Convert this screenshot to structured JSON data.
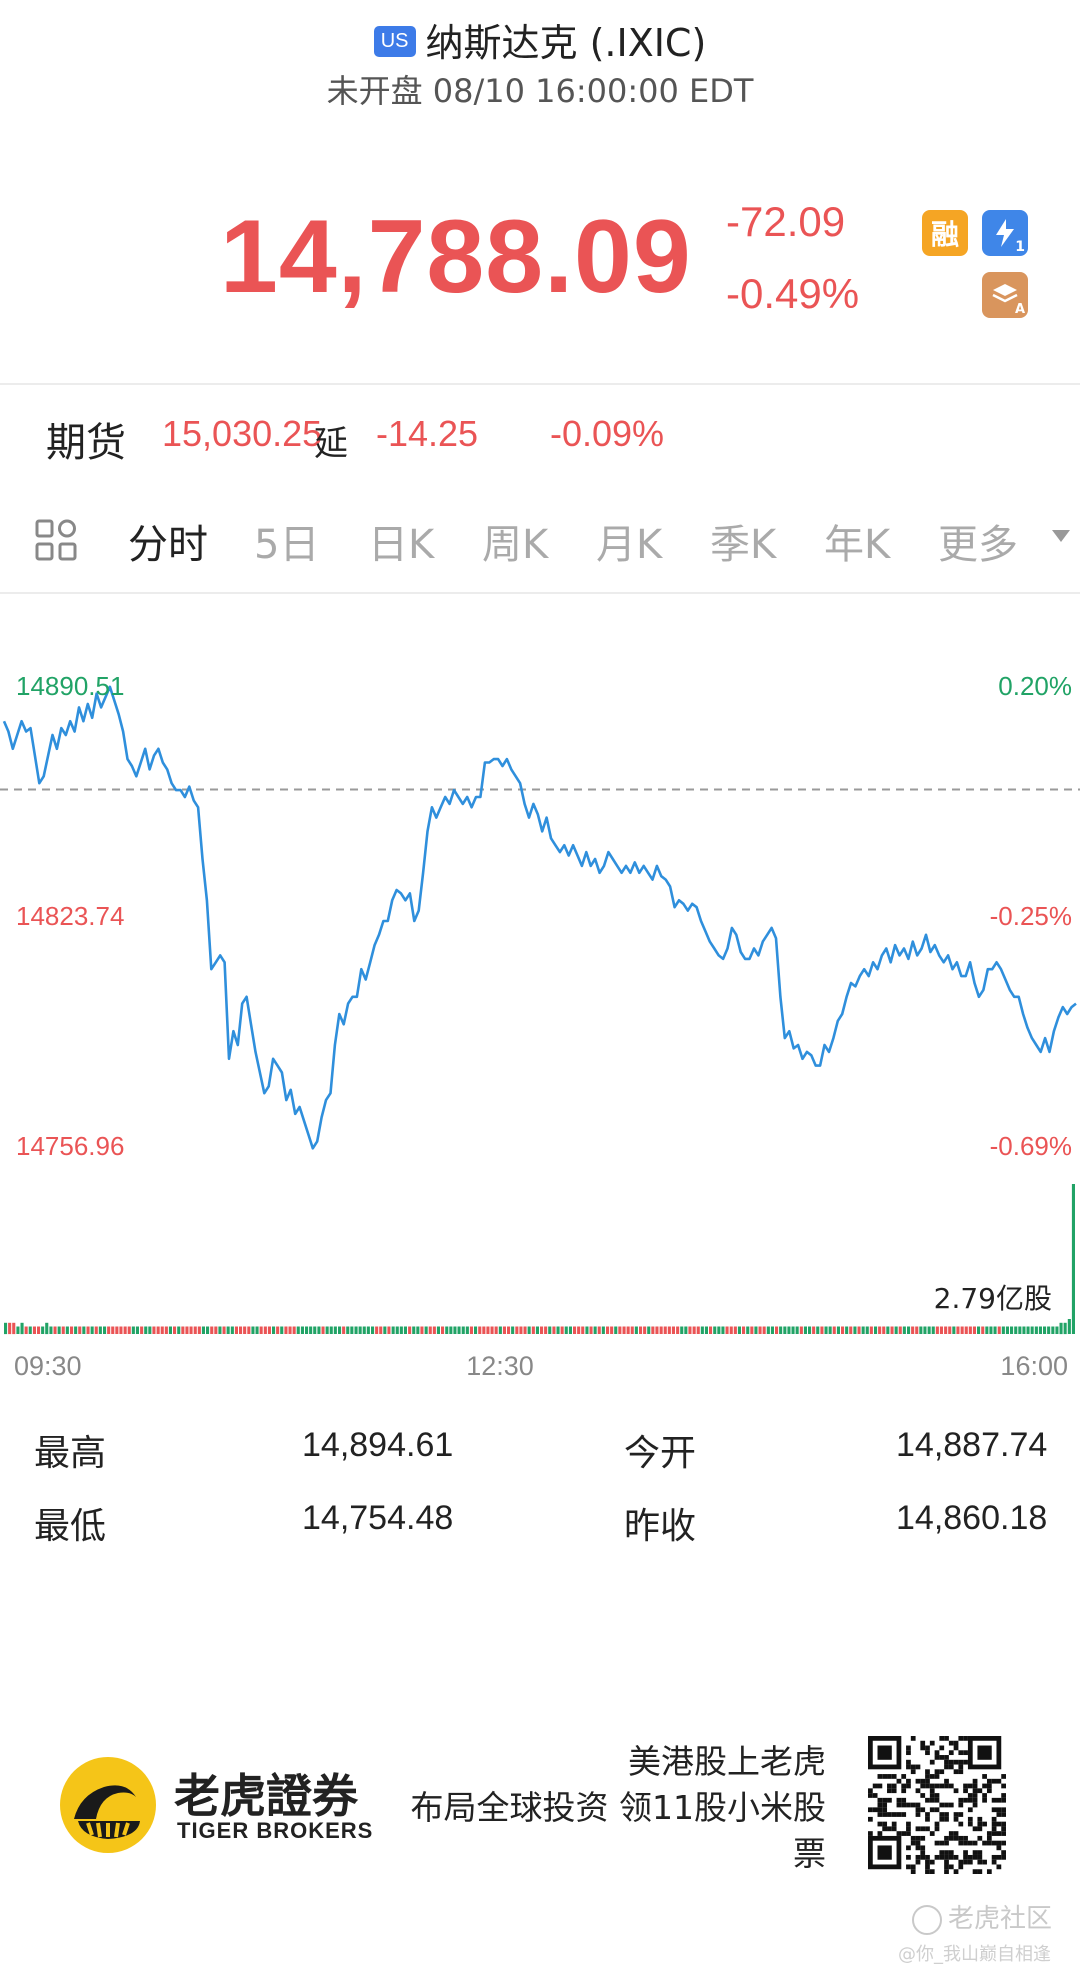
{
  "header": {
    "market_badge": "US",
    "title": "纳斯达克 (.IXIC)",
    "status": "未开盘 08/10 16:00:00 EDT"
  },
  "quote": {
    "price": "14,788.09",
    "change": "-72.09",
    "change_pct": "-0.49%",
    "badge_margin": "融",
    "badge_flash_sub": "1",
    "badge_layer_sub": "A"
  },
  "futures": {
    "label": "期货",
    "price": "15,030.25",
    "delay_tag": "延",
    "change": "-14.25",
    "change_pct": "-0.09%"
  },
  "tabs": {
    "active": "分时",
    "items": [
      "分时",
      "5日",
      "日K",
      "周K",
      "月K",
      "季K",
      "年K",
      "更多"
    ]
  },
  "chart_data": {
    "type": "line",
    "y_left_labels": [
      "14890.51",
      "14823.74",
      "14756.96"
    ],
    "y_right_labels": [
      "0.20%",
      "-0.25%",
      "-0.69%"
    ],
    "prev_close": 14860.18,
    "ylim": [
      14756.96,
      14890.51
    ],
    "x_labels": [
      "09:30",
      "12:30",
      "16:00"
    ],
    "volume_label": "2.79亿股",
    "colors": {
      "line": "#2f8fdc",
      "up": "#21a366",
      "down": "#ea5455",
      "ref": "#9a9a9a"
    },
    "series": [
      {
        "values": [
          14880,
          14877,
          14872,
          14876,
          14880,
          14877,
          14878,
          14870,
          14862,
          14864,
          14870,
          14876,
          14872,
          14878,
          14876,
          14880,
          14877,
          14884,
          14880,
          14885,
          14881,
          14888,
          14884,
          14887,
          14890,
          14886,
          14882,
          14877,
          14869,
          14867,
          14864,
          14868,
          14872,
          14866,
          14870,
          14872,
          14868,
          14866,
          14862,
          14860,
          14860,
          14858,
          14861,
          14857,
          14855,
          14840,
          14828,
          14808,
          14810,
          14812,
          14810,
          14782,
          14790,
          14786,
          14798,
          14800,
          14792,
          14784,
          14778,
          14772,
          14774,
          14782,
          14780,
          14778,
          14770,
          14773,
          14766,
          14768,
          14764,
          14760,
          14756,
          14758,
          14765,
          14770,
          14772,
          14786,
          14795,
          14792,
          14798,
          14800,
          14800,
          14808,
          14805,
          14810,
          14815,
          14818,
          14822,
          14822,
          14828,
          14831,
          14830,
          14828,
          14830,
          14822,
          14825,
          14836,
          14848,
          14855,
          14852,
          14855,
          14858,
          14856,
          14860,
          14858,
          14856,
          14858,
          14855,
          14858,
          14858,
          14868,
          14868,
          14869,
          14869,
          14867,
          14869,
          14866,
          14864,
          14862,
          14856,
          14852,
          14856,
          14853,
          14848,
          14852,
          14846,
          14844,
          14842,
          14844,
          14841,
          14844,
          14841,
          14838,
          14842,
          14838,
          14840,
          14836,
          14838,
          14842,
          14840,
          14838,
          14836,
          14838,
          14836,
          14839,
          14836,
          14838,
          14836,
          14834,
          14838,
          14835,
          14834,
          14832,
          14826,
          14828,
          14827,
          14825,
          14827,
          14826,
          14822,
          14819,
          14816,
          14814,
          14812,
          14811,
          14814,
          14820,
          14818,
          14813,
          14811,
          14811,
          14814,
          14812,
          14816,
          14818,
          14820,
          14817,
          14800,
          14788,
          14790,
          14785,
          14786,
          14782,
          14784,
          14783,
          14780,
          14780,
          14786,
          14784,
          14788,
          14793,
          14795,
          14800,
          14804,
          14803,
          14806,
          14808,
          14806,
          14810,
          14808,
          14812,
          14814,
          14810,
          14815,
          14812,
          14814,
          14811,
          14816,
          14812,
          14814,
          14818,
          14813,
          14815,
          14812,
          14810,
          14812,
          14808,
          14810,
          14806,
          14806,
          14810,
          14804,
          14800,
          14802,
          14808,
          14808,
          14810,
          14808,
          14805,
          14802,
          14800,
          14800,
          14795,
          14791,
          14788,
          14786,
          14784,
          14788,
          14784,
          14790,
          14794,
          14797,
          14795,
          14797,
          14798
        ]
      }
    ],
    "volume": [
      3,
      3,
      3,
      2,
      3,
      2,
      2,
      2,
      2,
      2,
      3,
      2,
      2,
      2,
      2,
      2,
      2,
      2,
      2,
      2,
      2,
      2,
      2,
      2,
      2,
      2,
      2,
      2,
      2,
      2,
      2,
      2,
      2,
      2,
      2,
      2,
      2,
      2,
      2,
      2,
      2,
      2,
      2,
      2,
      2,
      2,
      2,
      2,
      2,
      2,
      2,
      2,
      2,
      2,
      2,
      2,
      2,
      2,
      2,
      2,
      2,
      2,
      2,
      2,
      2,
      2,
      2,
      2,
      2,
      2,
      2,
      2,
      2,
      2,
      2,
      2,
      2,
      2,
      2,
      2,
      2,
      2,
      2,
      2,
      2,
      2,
      2,
      2,
      2,
      2,
      2,
      2,
      2,
      2,
      2,
      2,
      2,
      2,
      2,
      2,
      2,
      2,
      2,
      2,
      2,
      2,
      2,
      2,
      2,
      2,
      2,
      2,
      2,
      2,
      2,
      2,
      2,
      2,
      2,
      2,
      2,
      2,
      2,
      2,
      2,
      2,
      2,
      2,
      2,
      2,
      2,
      2,
      2,
      2,
      2,
      2,
      2,
      2,
      2,
      2,
      2,
      2,
      2,
      2,
      2,
      2,
      2,
      2,
      2,
      2,
      2,
      2,
      2,
      2,
      2,
      2,
      2,
      2,
      2,
      2,
      2,
      2,
      2,
      2,
      2,
      2,
      2,
      2,
      2,
      2,
      2,
      2,
      2,
      2,
      2,
      2,
      2,
      2,
      2,
      2,
      2,
      2,
      2,
      2,
      2,
      2,
      2,
      2,
      2,
      2,
      2,
      2,
      2,
      2,
      2,
      2,
      2,
      2,
      2,
      2,
      2,
      2,
      2,
      2,
      2,
      2,
      2,
      2,
      2,
      2,
      2,
      2,
      2,
      2,
      2,
      2,
      2,
      2,
      2,
      2,
      2,
      2,
      2,
      2,
      2,
      2,
      2,
      2,
      2,
      2,
      2,
      2,
      2,
      2,
      2,
      2,
      2,
      2,
      2,
      2,
      2,
      2,
      2,
      2,
      2,
      2,
      2,
      2,
      2,
      2,
      2,
      2,
      2,
      2,
      2,
      2,
      3,
      3,
      4,
      40
    ]
  },
  "stats": {
    "high_label": "最高",
    "high_value": "14,894.61",
    "low_label": "最低",
    "low_value": "14,754.48",
    "open_label": "今开",
    "open_value": "14,887.74",
    "prev_close_label": "昨收",
    "prev_close_value": "14,860.18"
  },
  "footer": {
    "brand_cn": "老虎證券",
    "brand_en": "TIGER BROKERS",
    "slogan_line1": "美港股上老虎",
    "slogan_line2": "布局全球投资 领11股小米股",
    "slogan_line3": "票",
    "community": "老虎社区",
    "watermark": "@你_我山巅自相逢"
  }
}
